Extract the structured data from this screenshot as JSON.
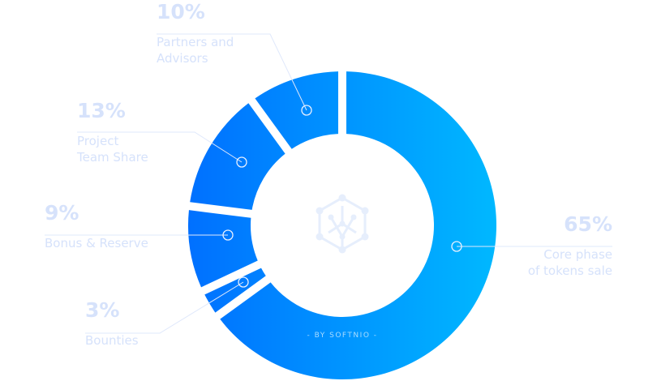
{
  "chart_data": {
    "type": "pie",
    "donut": true,
    "start": "top",
    "direction": "clockwise",
    "slices": [
      {
        "label": "Core phase of tokens sale",
        "lines": [
          "Core phase",
          "of tokens sale"
        ],
        "value": 65,
        "pct_label": "65%"
      },
      {
        "label": "Bounties",
        "lines": [
          "Bounties"
        ],
        "value": 3,
        "pct_label": "3%"
      },
      {
        "label": "Bonus & Reserve",
        "lines": [
          "Bonus & Reserve"
        ],
        "value": 9,
        "pct_label": "9%"
      },
      {
        "label": "Project Team Share",
        "lines": [
          "Project",
          "Team Share"
        ],
        "value": 13,
        "pct_label": "13%"
      },
      {
        "label": "Partners and Advisors",
        "lines": [
          "Partners and",
          "Advisors"
        ],
        "value": 10,
        "pct_label": "10%"
      }
    ],
    "colors": {
      "gradient_start": "#0070ff",
      "gradient_end": "#00b8ff",
      "label": "#d6e2fb",
      "center_icon": "#e6eefc"
    },
    "center_icon": "hexagon-network-icon",
    "credit": "- BY SOFTNIO -"
  }
}
